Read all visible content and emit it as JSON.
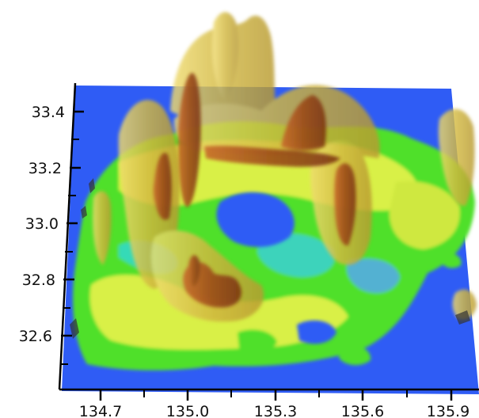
{
  "figure": {
    "colors": {
      "ground": "#2f5cf5",
      "field_green": "#4fe02a",
      "field_yellow": "#d9f046",
      "field_cyan": "#2fd8d0",
      "field_light_blue": "#52a8f0",
      "isosurface_outer": "#d6c048",
      "isosurface_inner": "#a8501c",
      "axis": "#000000"
    },
    "y_axis": {
      "tick_labels": [
        "33.4",
        "33.2",
        "33.0",
        "32.8",
        "32.6"
      ]
    },
    "x_axis": {
      "tick_labels": [
        "134.7",
        "135.0",
        "135.3",
        "135.6",
        "135.9"
      ]
    }
  }
}
